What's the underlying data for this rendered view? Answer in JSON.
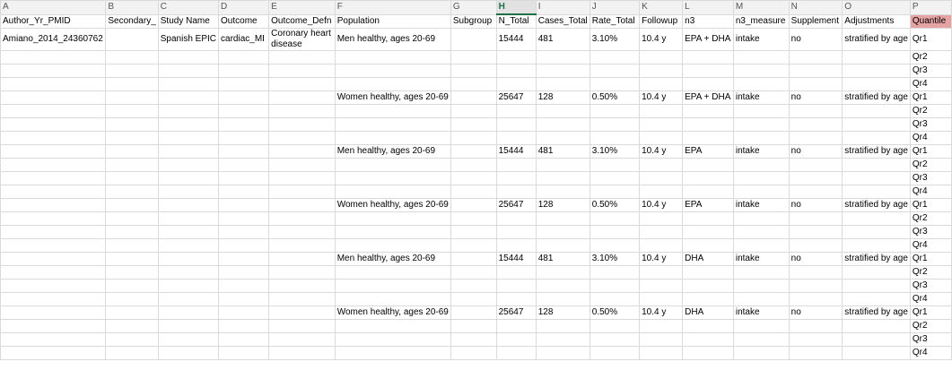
{
  "columns": [
    "A",
    "B",
    "C",
    "D",
    "E",
    "F",
    "G",
    "H",
    "I",
    "J",
    "K",
    "L",
    "M",
    "N",
    "O",
    "P"
  ],
  "active_column": "H",
  "headers": [
    "Author_Yr_PMID",
    "Secondary_",
    "Study Name",
    "Outcome",
    "Outcome_Defn",
    "Population",
    "Subgroup",
    "N_Total",
    "Cases_Total",
    "Rate_Total",
    "Followup",
    "n3",
    "n3_measure",
    "Supplement",
    "Adjustments",
    "Quantile"
  ],
  "first_row": {
    "author": "Amiano_2014_24360762",
    "study": "Spanish EPIC",
    "outcome": "cardiac_MI",
    "outcome_defn": "Coronary heart disease"
  },
  "groups": [
    {
      "population": "Men healthy, ages 20-69",
      "n_total": "15444",
      "cases": "481",
      "rate": "3.10%",
      "followup": "10.4 y",
      "n3": "EPA + DHA",
      "measure": "intake",
      "supplement": "no",
      "adjustments": "stratified by age"
    },
    {
      "population": "Women healthy, ages 20-69",
      "n_total": "25647",
      "cases": "128",
      "rate": "0.50%",
      "followup": "10.4 y",
      "n3": "EPA + DHA",
      "measure": "intake",
      "supplement": "no",
      "adjustments": "stratified by age"
    },
    {
      "population": "Men healthy, ages 20-69",
      "n_total": "15444",
      "cases": "481",
      "rate": "3.10%",
      "followup": "10.4 y",
      "n3": "EPA",
      "measure": "intake",
      "supplement": "no",
      "adjustments": "stratified by age"
    },
    {
      "population": "Women healthy, ages 20-69",
      "n_total": "25647",
      "cases": "128",
      "rate": "0.50%",
      "followup": "10.4 y",
      "n3": "EPA",
      "measure": "intake",
      "supplement": "no",
      "adjustments": "stratified by age"
    },
    {
      "population": "Men healthy, ages 20-69",
      "n_total": "15444",
      "cases": "481",
      "rate": "3.10%",
      "followup": "10.4 y",
      "n3": "DHA",
      "measure": "intake",
      "supplement": "no",
      "adjustments": "stratified by age"
    },
    {
      "population": "Women healthy, ages 20-69",
      "n_total": "25647",
      "cases": "128",
      "rate": "0.50%",
      "followup": "10.4 y",
      "n3": "DHA",
      "measure": "intake",
      "supplement": "no",
      "adjustments": "stratified by age"
    }
  ],
  "quantiles": [
    "Qr1",
    "Qr2",
    "Qr3",
    "Qr4"
  ]
}
